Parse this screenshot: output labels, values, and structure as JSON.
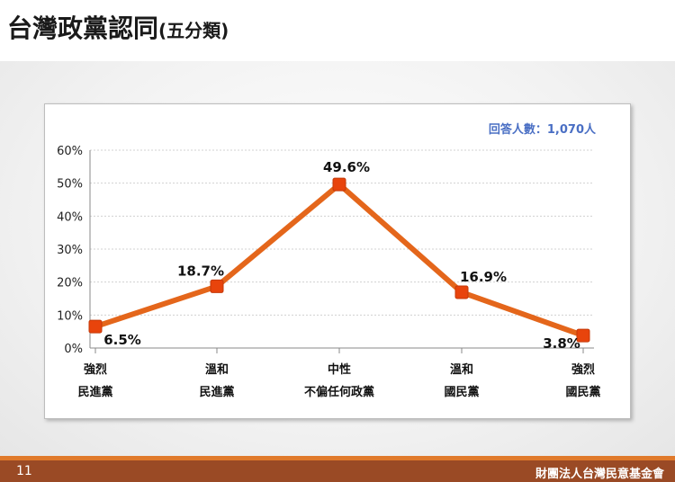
{
  "title": {
    "main": "台灣政黨認同",
    "sub": "(五分類)"
  },
  "footer": {
    "page": "11",
    "org": "財團法人台灣民意基金會"
  },
  "chart_data": {
    "type": "line",
    "title": "",
    "note": "回答人數：1,070人",
    "categories": [
      [
        "強烈",
        "民進黨"
      ],
      [
        "溫和",
        "民進黨"
      ],
      [
        "中性",
        "不偏任何政黨"
      ],
      [
        "溫和",
        "國民黨"
      ],
      [
        "強烈",
        "國民黨"
      ]
    ],
    "series": [
      {
        "values": [
          6.5,
          18.7,
          49.6,
          16.9,
          3.8
        ]
      }
    ],
    "data_labels": [
      "6.5%",
      "18.7%",
      "49.6%",
      "16.9%",
      "3.8%"
    ],
    "y_ticks": [
      "0%",
      "10%",
      "20%",
      "30%",
      "40%",
      "50%",
      "60%"
    ],
    "ylim": [
      0,
      60
    ],
    "grid": true,
    "colors": {
      "line": "#e4661b",
      "marker": "#e8440c",
      "grid": "#d0d0d0"
    }
  }
}
